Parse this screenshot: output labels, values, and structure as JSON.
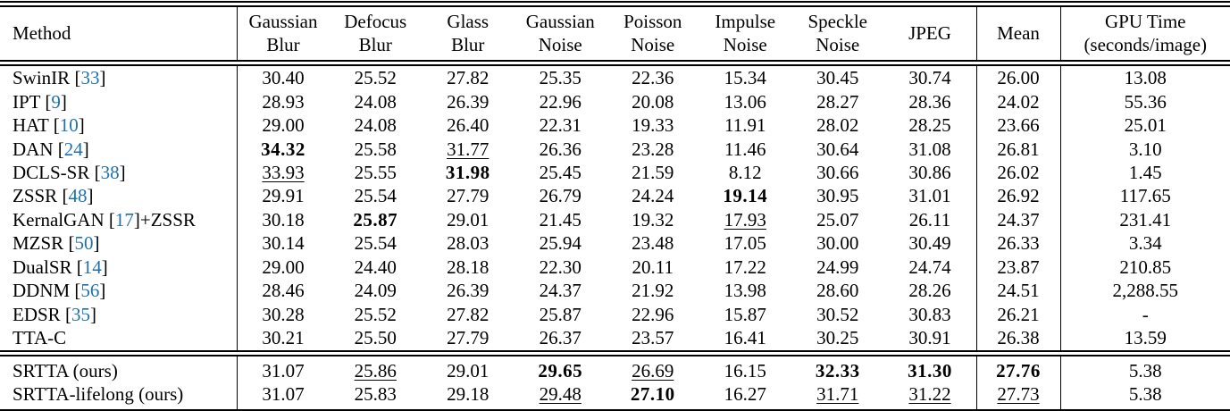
{
  "colors": {
    "citation_link": "#1c71b0",
    "text": "#000000",
    "rule": "#000000",
    "background": "#ffffff"
  },
  "table": {
    "columns": [
      "Method",
      "Gaussian\nBlur",
      "Defocus\nBlur",
      "Glass\nBlur",
      "Gaussian\nNoise",
      "Poisson\nNoise",
      "Impulse\nNoise",
      "Speckle\nNoise",
      "JPEG",
      "Mean",
      "GPU Time\n(seconds/image)"
    ],
    "body_rows": [
      {
        "method": {
          "name": "SwinIR",
          "cite": "33",
          "suffix": ""
        },
        "values": [
          "30.40",
          "25.52",
          "27.82",
          "25.35",
          "22.36",
          "15.34",
          "30.45",
          "30.74",
          "26.00",
          "13.08"
        ],
        "styles": [
          "",
          "",
          "",
          "",
          "",
          "",
          "",
          "",
          "",
          ""
        ]
      },
      {
        "method": {
          "name": "IPT",
          "cite": "9",
          "suffix": ""
        },
        "values": [
          "28.93",
          "24.08",
          "26.39",
          "22.96",
          "20.08",
          "13.06",
          "28.27",
          "28.36",
          "24.02",
          "55.36"
        ],
        "styles": [
          "",
          "",
          "",
          "",
          "",
          "",
          "",
          "",
          "",
          ""
        ]
      },
      {
        "method": {
          "name": "HAT",
          "cite": "10",
          "suffix": ""
        },
        "values": [
          "29.00",
          "24.08",
          "26.40",
          "22.31",
          "19.33",
          "11.91",
          "28.02",
          "28.25",
          "23.66",
          "25.01"
        ],
        "styles": [
          "",
          "",
          "",
          "",
          "",
          "",
          "",
          "",
          "",
          ""
        ]
      },
      {
        "method": {
          "name": "DAN",
          "cite": "24",
          "suffix": ""
        },
        "values": [
          "34.32",
          "25.58",
          "31.77",
          "26.36",
          "23.28",
          "11.46",
          "30.64",
          "31.08",
          "26.81",
          "3.10"
        ],
        "styles": [
          "b",
          "",
          "u",
          "",
          "",
          "",
          "",
          "",
          "",
          ""
        ]
      },
      {
        "method": {
          "name": "DCLS-SR",
          "cite": "38",
          "suffix": ""
        },
        "values": [
          "33.93",
          "25.55",
          "31.98",
          "25.45",
          "21.59",
          "8.12",
          "30.66",
          "30.86",
          "26.02",
          "1.45"
        ],
        "styles": [
          "u",
          "",
          "b",
          "",
          "",
          "",
          "",
          "",
          "",
          ""
        ]
      },
      {
        "method": {
          "name": "ZSSR",
          "cite": "48",
          "suffix": ""
        },
        "values": [
          "29.91",
          "25.54",
          "27.79",
          "26.79",
          "24.24",
          "19.14",
          "30.95",
          "31.01",
          "26.92",
          "117.65"
        ],
        "styles": [
          "",
          "",
          "",
          "",
          "",
          "b",
          "",
          "",
          "",
          ""
        ]
      },
      {
        "method": {
          "name": "KernalGAN",
          "cite": "17",
          "suffix": "+ZSSR"
        },
        "values": [
          "30.18",
          "25.87",
          "29.01",
          "21.45",
          "19.32",
          "17.93",
          "25.07",
          "26.11",
          "24.37",
          "231.41"
        ],
        "styles": [
          "",
          "b",
          "",
          "",
          "",
          "u",
          "",
          "",
          "",
          ""
        ]
      },
      {
        "method": {
          "name": "MZSR",
          "cite": "50",
          "suffix": ""
        },
        "values": [
          "30.14",
          "25.54",
          "28.03",
          "25.94",
          "23.48",
          "17.05",
          "30.00",
          "30.49",
          "26.33",
          "3.34"
        ],
        "styles": [
          "",
          "",
          "",
          "",
          "",
          "",
          "",
          "",
          "",
          ""
        ]
      },
      {
        "method": {
          "name": "DualSR",
          "cite": "14",
          "suffix": ""
        },
        "values": [
          "29.00",
          "24.40",
          "28.18",
          "22.30",
          "20.11",
          "17.22",
          "24.99",
          "24.74",
          "23.87",
          "210.85"
        ],
        "styles": [
          "",
          "",
          "",
          "",
          "",
          "",
          "",
          "",
          "",
          ""
        ]
      },
      {
        "method": {
          "name": "DDNM",
          "cite": "56",
          "suffix": ""
        },
        "values": [
          "28.46",
          "24.09",
          "26.39",
          "24.37",
          "21.92",
          "13.98",
          "28.60",
          "28.26",
          "24.51",
          "2,288.55"
        ],
        "styles": [
          "",
          "",
          "",
          "",
          "",
          "",
          "",
          "",
          "",
          ""
        ]
      },
      {
        "method": {
          "name": "EDSR",
          "cite": "35",
          "suffix": ""
        },
        "values": [
          "30.28",
          "25.52",
          "27.82",
          "25.87",
          "22.96",
          "15.87",
          "30.52",
          "30.83",
          "26.21",
          "-"
        ],
        "styles": [
          "",
          "",
          "",
          "",
          "",
          "",
          "",
          "",
          "",
          ""
        ]
      },
      {
        "method": {
          "name": "TTA-C",
          "cite": "",
          "suffix": ""
        },
        "values": [
          "30.21",
          "25.50",
          "27.79",
          "26.37",
          "23.57",
          "16.41",
          "30.25",
          "30.91",
          "26.38",
          "13.59"
        ],
        "styles": [
          "",
          "",
          "",
          "",
          "",
          "",
          "",
          "",
          "",
          ""
        ]
      }
    ],
    "ours_rows": [
      {
        "method": {
          "name": "SRTTA (ours)",
          "cite": "",
          "suffix": ""
        },
        "values": [
          "31.07",
          "25.86",
          "29.01",
          "29.65",
          "26.69",
          "16.15",
          "32.33",
          "31.30",
          "27.76",
          "5.38"
        ],
        "styles": [
          "",
          "u",
          "",
          "b",
          "u",
          "",
          "b",
          "b",
          "b",
          ""
        ]
      },
      {
        "method": {
          "name": "SRTTA-lifelong (ours)",
          "cite": "",
          "suffix": ""
        },
        "values": [
          "31.07",
          "25.83",
          "29.18",
          "29.48",
          "27.10",
          "16.27",
          "31.71",
          "31.22",
          "27.73",
          "5.38"
        ],
        "styles": [
          "",
          "",
          "",
          "u",
          "b",
          "",
          "u",
          "u",
          "u",
          ""
        ]
      }
    ]
  }
}
